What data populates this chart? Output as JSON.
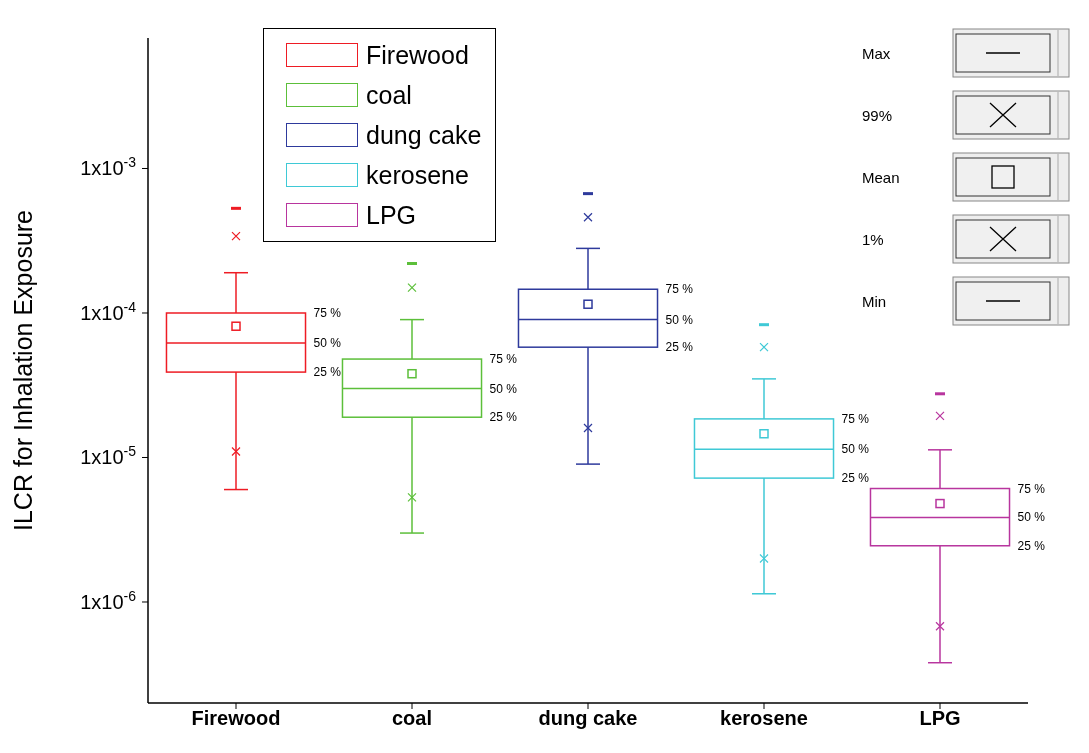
{
  "chart_data": {
    "type": "box",
    "ylabel": "ILCR for Inhalation Exposure",
    "categories": [
      "Firewood",
      "coal",
      "dung cake",
      "kerosene",
      "LPG"
    ],
    "log": true,
    "grid": false,
    "legend": "top left",
    "ylim": [
      2e-07,
      0.008
    ],
    "yticks": [
      {
        "value": 1e-06,
        "label": "1x10$^{-6}$"
      },
      {
        "value": 1e-05,
        "label": "1x10$^{-5}$"
      },
      {
        "value": 0.0001,
        "label": "1x10$^{-4}$"
      },
      {
        "value": 0.001,
        "label": "1x10$^{-3}$"
      }
    ],
    "series": [
      {
        "name": "Firewood",
        "color": "#ee1c24",
        "boxes": [
          {
            "low": 6e-06,
            "q1": 3.9e-05,
            "median": 6.2e-05,
            "q3": 0.0001,
            "high": 0.00019,
            "mean": 8.1e-05,
            "outliers": [
              0.00034,
              1.1e-05
            ]
          },
          null,
          null,
          null,
          null
        ]
      },
      {
        "name": "coal",
        "color": "#5cbf3a",
        "boxes": [
          null,
          {
            "low": 3e-06,
            "q1": 1.9e-05,
            "median": 3e-05,
            "q3": 4.8e-05,
            "high": 9e-05,
            "mean": 3.8e-05,
            "outliers": [
              0.00015,
              5.3e-06
            ]
          },
          null,
          null,
          null
        ]
      },
      {
        "name": "dung cake",
        "color": "#2e3a9c",
        "boxes": [
          null,
          null,
          {
            "low": 9e-06,
            "q1": 5.8e-05,
            "median": 9e-05,
            "q3": 0.000146,
            "high": 0.00028,
            "mean": 0.000115,
            "outliers": [
              0.00046,
              1.6e-05
            ]
          },
          null,
          null
        ]
      },
      {
        "name": "kerosene",
        "color": "#3fc9d6",
        "boxes": [
          null,
          null,
          null,
          {
            "low": 1.14e-06,
            "q1": 7.2e-06,
            "median": 1.14e-05,
            "q3": 1.85e-05,
            "high": 3.5e-05,
            "mean": 1.46e-05,
            "outliers": [
              5.8e-05,
              2e-06
            ]
          },
          null
        ]
      },
      {
        "name": "LPG",
        "color": "#b8359e",
        "boxes": [
          null,
          null,
          null,
          null,
          {
            "low": 3.8e-07,
            "q1": 2.45e-06,
            "median": 3.85e-06,
            "q3": 6.1e-06,
            "high": 1.13e-05,
            "mean": 4.8e-06,
            "outliers": [
              1.94e-05,
              6.8e-07
            ]
          }
        ]
      },
      {
        "type": "scatter",
        "x": [
          "Firewood",
          "coal",
          "dung cake",
          "kerosene",
          "LPG"
        ],
        "values": [
          0.00053,
          0.00022,
          0.00067,
          8.3e-05,
          2.76e-05
        ],
        "colors": [
          "#ee1c24",
          "#5cbf3a",
          "#2e3a9c",
          "#3fc9d6",
          "#b8359e"
        ]
      }
    ],
    "annotations": [
      "Max",
      "99%",
      "Mean",
      "1%",
      "Min",
      "75 %",
      "50 %",
      "25 %",
      "75 %",
      "50 %",
      "25 %",
      "75 %",
      "50 %",
      "25 %",
      "75 %",
      "50 %",
      "25 %",
      "75 %",
      "50 %",
      "25 %"
    ]
  }
}
